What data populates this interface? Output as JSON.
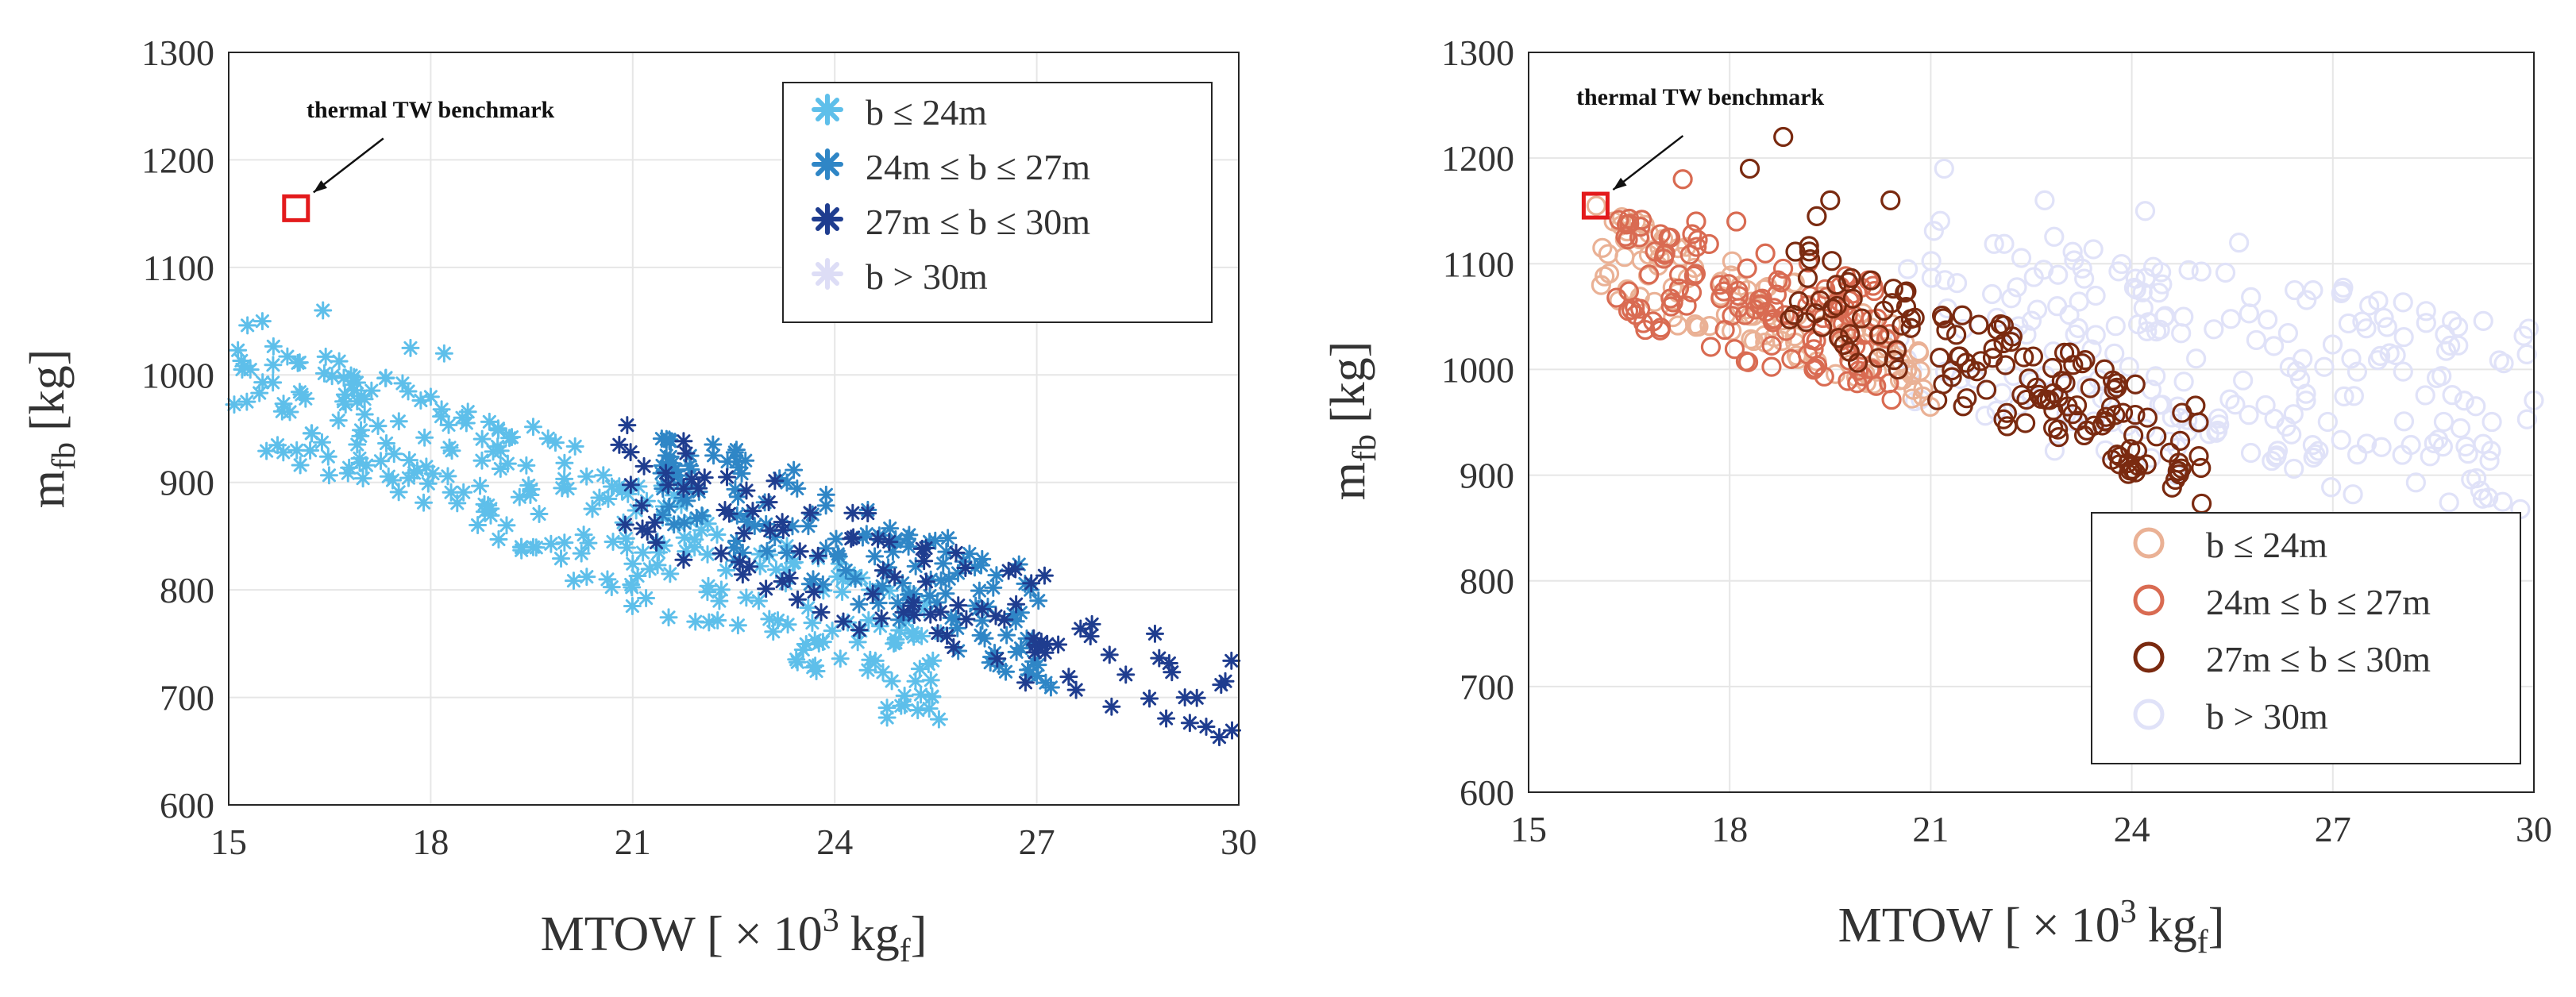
{
  "chart_data": [
    {
      "type": "scatter",
      "marker": "asterisk",
      "xlabel": {
        "main": "MTOW [",
        "times": "×",
        "ten": "10",
        "exp": "3",
        "unit": "kg",
        "sub": "f",
        "close": "]"
      },
      "ylabel": {
        "main": "m",
        "sub": "fb",
        "unit": "[kg]"
      },
      "xlim": [
        15,
        30
      ],
      "ylim": [
        600,
        1300
      ],
      "xticks": [
        "15",
        "18",
        "21",
        "24",
        "27",
        "30"
      ],
      "yticks": [
        "600",
        "700",
        "800",
        "900",
        "1000",
        "1100",
        "1200",
        "1300"
      ],
      "grid": true,
      "legend_position": "top-right",
      "annotation": {
        "text": "thermal TW benchmark",
        "x": 16.0,
        "y": 1155
      },
      "benchmark": {
        "x": 16.0,
        "y": 1155,
        "color": "#e31a1c"
      },
      "series": [
        {
          "name": "b ≤ 24m",
          "color": "#5ebfea",
          "band": {
            "x_start": 15.0,
            "x_end": 25.6,
            "y_start": 1010,
            "slope": -27,
            "width": 58,
            "spread": 0.35,
            "count": 280
          },
          "points": [
            {
              "x": 15.2,
              "y": 1005
            },
            {
              "x": 15.5,
              "y": 1050
            },
            {
              "x": 16.4,
              "y": 1060
            },
            {
              "x": 17.7,
              "y": 1025
            },
            {
              "x": 18.2,
              "y": 1020
            },
            {
              "x": 25.2,
              "y": 715
            }
          ]
        },
        {
          "name": "24m ≤ b ≤ 27m",
          "color": "#2f86c6",
          "band": {
            "x_start": 21.2,
            "x_end": 27.3,
            "y_start": 915,
            "slope": -26,
            "width": 50,
            "spread": 0.3,
            "count": 150
          },
          "points": [
            {
              "x": 21.5,
              "y": 925
            },
            {
              "x": 22.2,
              "y": 925
            },
            {
              "x": 27.0,
              "y": 720
            }
          ]
        },
        {
          "name": "27m ≤ b ≤ 30m",
          "color": "#1f3d8f",
          "band": {
            "x_start": 20.8,
            "x_end": 29.9,
            "y_start": 900,
            "slope": -23,
            "width": 55,
            "spread": 0.4,
            "count": 110
          },
          "points": [
            {
              "x": 20.8,
              "y": 935
            },
            {
              "x": 22.4,
              "y": 905
            },
            {
              "x": 29.2,
              "y": 700
            },
            {
              "x": 29.8,
              "y": 715
            }
          ]
        },
        {
          "name": "b > 30m",
          "color": "#ddddf6",
          "band": {
            "x_start": 0,
            "x_end": 0,
            "y_start": 0,
            "slope": 0,
            "width": 0,
            "spread": 0,
            "count": 0
          },
          "points": []
        }
      ]
    },
    {
      "type": "scatter",
      "marker": "circle",
      "xlabel": {
        "main": "MTOW [",
        "times": "×",
        "ten": "10",
        "exp": "3",
        "unit": "kg",
        "sub": "f",
        "close": "]"
      },
      "ylabel": {
        "main": "m",
        "sub": "fb",
        "unit": "[kg]"
      },
      "xlim": [
        15,
        30
      ],
      "ylim": [
        600,
        1300
      ],
      "xticks": [
        "15",
        "18",
        "21",
        "24",
        "27",
        "30"
      ],
      "yticks": [
        "600",
        "700",
        "800",
        "900",
        "1000",
        "1100",
        "1200",
        "1300"
      ],
      "grid": true,
      "legend_position": "bottom-right",
      "annotation": {
        "text": "thermal TW benchmark",
        "x": 16.0,
        "y": 1155
      },
      "benchmark": {
        "x": 16.0,
        "y": 1155,
        "color": "#e31a1c"
      },
      "series": [
        {
          "name": "b ≤ 24m",
          "color": "#eab195",
          "band": {
            "x_start": 16.0,
            "x_end": 21.0,
            "y_start": 1115,
            "slope": -24,
            "width": 40,
            "spread": 0.3,
            "count": 110
          },
          "points": [
            {
              "x": 16.1,
              "y": 1115
            },
            {
              "x": 16.6,
              "y": 1140
            }
          ]
        },
        {
          "name": "24m ≤ b ≤ 27m",
          "color": "#d96b52",
          "band": {
            "x_start": 16.3,
            "x_end": 20.5,
            "y_start": 1100,
            "slope": -20,
            "width": 55,
            "spread": 0.3,
            "count": 130
          },
          "points": [
            {
              "x": 17.3,
              "y": 1180
            },
            {
              "x": 17.5,
              "y": 1140
            },
            {
              "x": 18.1,
              "y": 1140
            }
          ]
        },
        {
          "name": "27m ≤ b ≤ 30m",
          "color": "#7a2a10",
          "band": {
            "x_start": 18.8,
            "x_end": 25.1,
            "y_start": 1080,
            "slope": -26,
            "width": 45,
            "spread": 0.3,
            "count": 150
          },
          "points": [
            {
              "x": 18.3,
              "y": 1190
            },
            {
              "x": 18.8,
              "y": 1220
            },
            {
              "x": 19.3,
              "y": 1145
            },
            {
              "x": 19.5,
              "y": 1160
            },
            {
              "x": 20.4,
              "y": 1160
            },
            {
              "x": 25.0,
              "y": 950
            },
            {
              "x": 25.0,
              "y": 918
            }
          ]
        },
        {
          "name": "b > 30m",
          "color": "#e0e2f8",
          "band": {
            "x_start": 20.5,
            "x_end": 30.0,
            "y_start": 1050,
            "slope": -10,
            "width": 95,
            "spread": 0.3,
            "count": 230
          },
          "points": [
            {
              "x": 21.2,
              "y": 1190
            },
            {
              "x": 22.7,
              "y": 1160
            },
            {
              "x": 24.2,
              "y": 1150
            },
            {
              "x": 25.6,
              "y": 1120
            }
          ]
        }
      ]
    }
  ]
}
